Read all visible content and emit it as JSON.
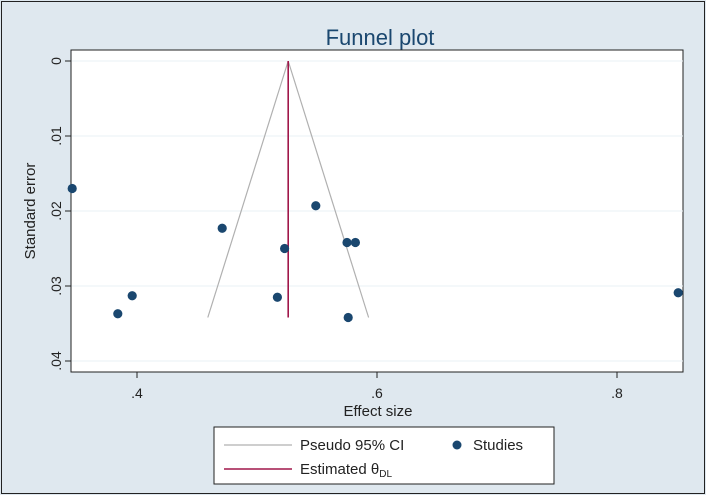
{
  "chart_data": {
    "type": "scatter",
    "title": "Funnel plot",
    "xlabel": "Effect size",
    "ylabel": "Standard error",
    "xlim": [
      0.345,
      0.855
    ],
    "ylim": [
      0,
      0.04
    ],
    "y_reversed": true,
    "x_ticks": [
      0.4,
      0.6,
      0.8
    ],
    "x_tick_labels": [
      ".4",
      ".6",
      ".8"
    ],
    "y_ticks": [
      0,
      0.01,
      0.02,
      0.03,
      0.04
    ],
    "y_tick_labels": [
      "0",
      ".01",
      ".02",
      ".03",
      ".04"
    ],
    "grid": true,
    "legend_position": "bottom",
    "series": [
      {
        "name": "Studies",
        "kind": "scatter",
        "color": "#1a476f",
        "points": [
          {
            "x": 0.346,
            "y": 0.017
          },
          {
            "x": 0.384,
            "y": 0.0337
          },
          {
            "x": 0.396,
            "y": 0.0313
          },
          {
            "x": 0.471,
            "y": 0.0223
          },
          {
            "x": 0.517,
            "y": 0.0315
          },
          {
            "x": 0.523,
            "y": 0.025
          },
          {
            "x": 0.549,
            "y": 0.0193
          },
          {
            "x": 0.575,
            "y": 0.0242
          },
          {
            "x": 0.582,
            "y": 0.0242
          },
          {
            "x": 0.576,
            "y": 0.0342
          },
          {
            "x": 0.851,
            "y": 0.0309
          }
        ]
      },
      {
        "name": "Pseudo 95% CI",
        "kind": "lines",
        "color": "#b0b0b0",
        "lines": [
          [
            {
              "x": 0.526,
              "y": 0
            },
            {
              "x": 0.459,
              "y": 0.0342
            }
          ],
          [
            {
              "x": 0.526,
              "y": 0
            },
            {
              "x": 0.593,
              "y": 0.0342
            }
          ]
        ]
      },
      {
        "name": "Estimated θDL",
        "kind": "vline",
        "color": "#a0174a",
        "x": 0.526,
        "y_range": [
          0,
          0.0342
        ]
      }
    ],
    "legend": {
      "ci_label": "Pseudo 95% CI",
      "studies_label": "Studies",
      "est_label_main": "Estimated θ",
      "est_label_sub": "DL"
    }
  }
}
